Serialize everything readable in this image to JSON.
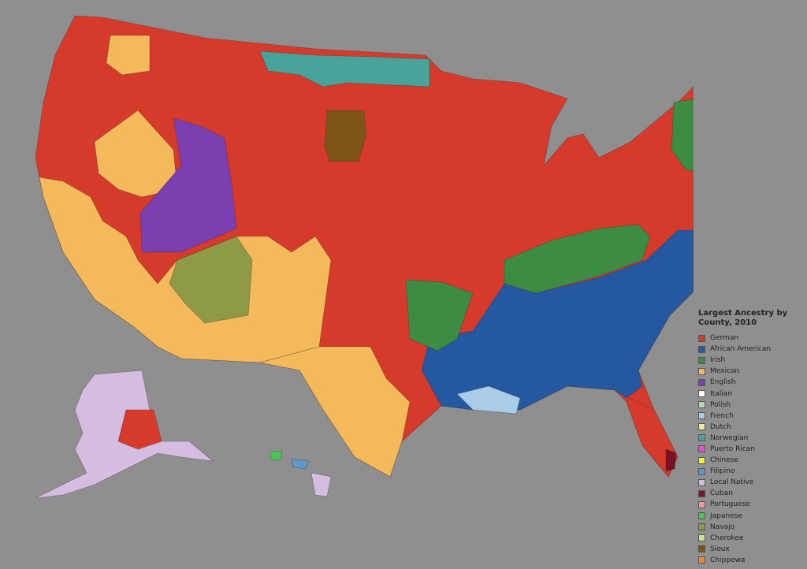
{
  "legend": {
    "title": "Largest Ancestry by County, 2010",
    "items": [
      {
        "name": "German",
        "color": "#d63a2b"
      },
      {
        "name": "African American",
        "color": "#2458a0"
      },
      {
        "name": "Irish",
        "color": "#3d8c43"
      },
      {
        "name": "Mexican",
        "color": "#f4b95a"
      },
      {
        "name": "English",
        "color": "#7b3fb0"
      },
      {
        "name": "Italian",
        "color": "#ffffff"
      },
      {
        "name": "Polish",
        "color": "#b5dbb0"
      },
      {
        "name": "French",
        "color": "#a9cde8"
      },
      {
        "name": "Dutch",
        "color": "#f3e6a6"
      },
      {
        "name": "Norwegian",
        "color": "#4aa39a"
      },
      {
        "name": "Puerto Rican",
        "color": "#e24fcf"
      },
      {
        "name": "Chinese",
        "color": "#f5f232"
      },
      {
        "name": "Filipino",
        "color": "#5f97c9"
      },
      {
        "name": "Local Native",
        "color": "#d4bde0"
      },
      {
        "name": "Cuban",
        "color": "#7a1228"
      },
      {
        "name": "Portuguese",
        "color": "#f29a9a"
      },
      {
        "name": "Japanese",
        "color": "#4cc25a"
      },
      {
        "name": "Navajo",
        "color": "#8f9a46"
      },
      {
        "name": "Cherokee",
        "color": "#c6e590"
      },
      {
        "name": "Sioux",
        "color": "#7f5417"
      },
      {
        "name": "Chippewa",
        "color": "#ef8a2e"
      }
    ]
  }
}
